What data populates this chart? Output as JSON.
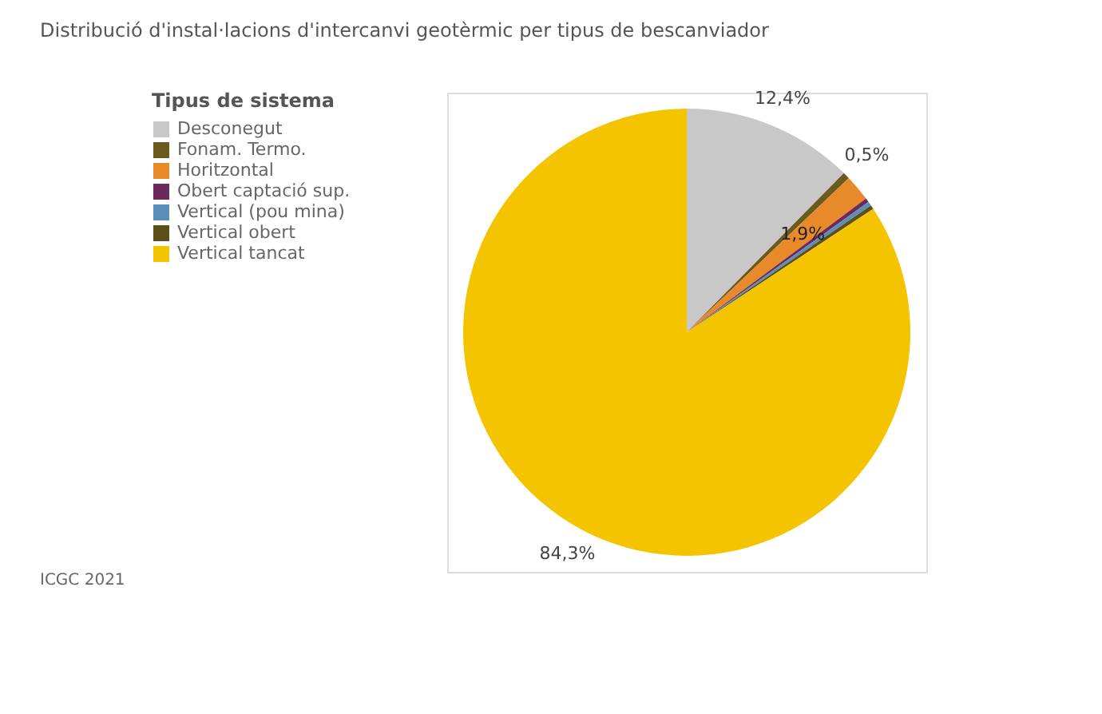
{
  "chart_data": {
    "type": "pie",
    "title": "Distribució d'instal·lacions d'intercanvi geotèrmic per tipus de bescanviador",
    "legend_title": "Tipus de sistema",
    "categories": [
      "Desconegut",
      "Fonam. Termo.",
      "Horitzontal",
      "Obert captació sup.",
      "Vertical (pou mina)",
      "Vertical obert",
      "Vertical tancat"
    ],
    "values": [
      12.4,
      0.5,
      1.9,
      0.3,
      0.3,
      0.3,
      84.3
    ],
    "value_labels": [
      "12,4%",
      "0,5%",
      "1,9%",
      null,
      null,
      null,
      "84,3%"
    ],
    "colors": [
      "#c8c8c8",
      "#6b5a1e",
      "#e8892a",
      "#6b2a5a",
      "#5b8fb9",
      "#5c4f1a",
      "#f5c400"
    ],
    "legend": "left",
    "annotations": [
      "ICGC 2021"
    ]
  }
}
